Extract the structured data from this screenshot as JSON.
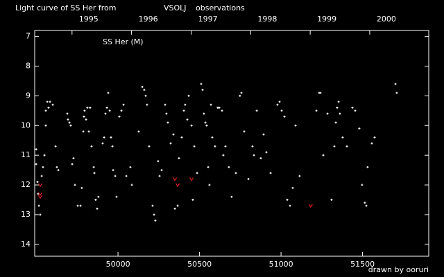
{
  "chart_data": {
    "type": "scatter",
    "title": "Light curve of SS Her from",
    "source": "VSOLJ",
    "title_suffix": "observations",
    "title_color": "#ffffff",
    "source_color": "#f0e000",
    "annotation": "SS Her (M)",
    "credit": "drawn by ooruri",
    "credit_color": "#44ccff",
    "xlim": [
      49489,
      51906
    ],
    "ylim": [
      14.4,
      6.8
    ],
    "xticks": [
      50000,
      50500,
      51000,
      51500
    ],
    "yticks": [
      7,
      8,
      9,
      10,
      11,
      12,
      13,
      14
    ],
    "x2ticks": [
      {
        "value": 49718,
        "label": "1995"
      },
      {
        "value": 50083,
        "label": "1996"
      },
      {
        "value": 50449,
        "label": "1997"
      },
      {
        "value": 50814,
        "label": "1998"
      },
      {
        "value": 51179,
        "label": "1999"
      },
      {
        "value": 51544,
        "label": "2000"
      }
    ],
    "observations": {
      "color": "#ffffff",
      "x": [
        49498,
        49498,
        49506,
        49510,
        49515,
        49523,
        49532,
        49540,
        49549,
        49557,
        49557,
        49566,
        49574,
        49583,
        49600,
        49617,
        49625,
        49634,
        49689,
        49693,
        49702,
        49710,
        49719,
        49727,
        49736,
        49753,
        49770,
        49778,
        49787,
        49791,
        49795,
        49804,
        49812,
        49821,
        49829,
        49838,
        49851,
        49855,
        49863,
        49872,
        49880,
        49906,
        49915,
        49923,
        49932,
        49940,
        49949,
        49957,
        49966,
        49970,
        49983,
        49991,
        50008,
        50021,
        50034,
        50051,
        50076,
        50085,
        50127,
        50149,
        50161,
        50170,
        50178,
        50191,
        50212,
        50221,
        50229,
        50246,
        50255,
        50268,
        50289,
        50297,
        50306,
        50323,
        50340,
        50349,
        50366,
        50374,
        50391,
        50404,
        50412,
        50425,
        50434,
        50451,
        50459,
        50468,
        50485,
        50510,
        50519,
        50527,
        50536,
        50544,
        50553,
        50561,
        50570,
        50578,
        50595,
        50612,
        50621,
        50638,
        50646,
        50659,
        50680,
        50697,
        50723,
        50748,
        50757,
        50774,
        50800,
        50825,
        50834,
        50851,
        50876,
        50893,
        50910,
        50936,
        50978,
        50991,
        51004,
        51021,
        51038,
        51055,
        51072,
        51089,
        51114,
        51217,
        51234,
        51242,
        51259,
        51285,
        51310,
        51327,
        51336,
        51344,
        51353,
        51361,
        51378,
        51404,
        51438,
        51455,
        51480,
        51497,
        51514,
        51523,
        51531,
        51557,
        51574,
        51702,
        51710
      ],
      "y": [
        10.8,
        11.3,
        11.9,
        12.3,
        12.7,
        13.0,
        11.7,
        11.4,
        11.0,
        10.0,
        9.5,
        9.2,
        9.4,
        9.2,
        9.3,
        10.7,
        11.4,
        11.5,
        9.6,
        9.8,
        9.9,
        10.0,
        11.3,
        11.1,
        12.0,
        12.7,
        12.7,
        12.1,
        10.2,
        9.7,
        9.5,
        9.8,
        9.4,
        10.2,
        9.4,
        10.7,
        11.4,
        11.6,
        12.5,
        12.8,
        12.4,
        10.6,
        10.4,
        9.6,
        9.4,
        8.9,
        9.5,
        10.4,
        10.7,
        11.5,
        11.7,
        12.4,
        9.7,
        9.5,
        9.3,
        11.7,
        11.4,
        12.0,
        10.2,
        8.7,
        8.8,
        9.0,
        9.3,
        10.7,
        12.7,
        13.0,
        13.2,
        11.2,
        11.7,
        11.5,
        9.3,
        9.6,
        9.9,
        10.6,
        10.3,
        12.8,
        12.7,
        11.1,
        10.4,
        9.5,
        9.3,
        9.8,
        9.0,
        10.0,
        12.5,
        10.7,
        11.6,
        8.6,
        8.8,
        9.6,
        9.9,
        10.0,
        11.4,
        12.0,
        9.3,
        10.4,
        10.7,
        9.4,
        9.4,
        9.5,
        11.0,
        10.7,
        11.4,
        12.4,
        11.6,
        9.0,
        8.9,
        10.2,
        11.8,
        10.7,
        11.0,
        9.5,
        11.1,
        10.3,
        10.9,
        11.6,
        9.3,
        9.2,
        9.5,
        9.7,
        12.5,
        12.7,
        12.1,
        10.0,
        11.7,
        9.5,
        8.9,
        8.9,
        11.0,
        9.6,
        12.5,
        10.7,
        9.9,
        9.4,
        9.2,
        9.6,
        10.4,
        10.7,
        9.4,
        9.5,
        10.1,
        12.0,
        12.6,
        12.7,
        11.4,
        10.6,
        10.4,
        8.6,
        8.9
      ]
    },
    "fainter_than": {
      "color": "#e02020",
      "x": [
        49523,
        49523,
        49523,
        50349,
        50366,
        50451,
        51182
      ],
      "y": [
        12.0,
        12.3,
        12.4,
        11.8,
        12.0,
        11.8,
        12.7
      ]
    }
  }
}
